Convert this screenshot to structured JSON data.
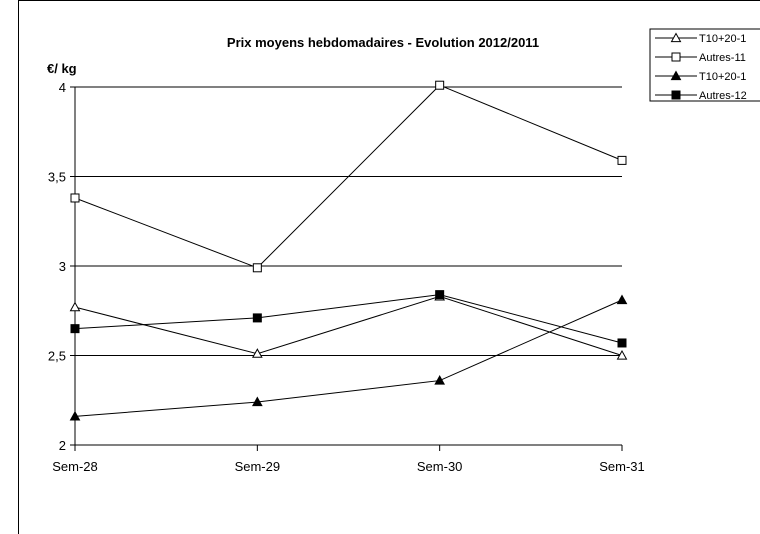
{
  "chart_data": {
    "type": "line",
    "title": "Prix moyens hebdomadaires - Evolution  2012/2011",
    "ylabel": "€/ kg",
    "xlabel": "",
    "categories": [
      "Sem-28",
      "Sem-29",
      "Sem-30",
      "Sem-31"
    ],
    "ylim": [
      2,
      4
    ],
    "yticks": [
      "2",
      "2,5",
      "3",
      "3,5",
      "4"
    ],
    "grid": true,
    "legend_position": "top-right",
    "series": [
      {
        "name": "T10+20-1",
        "marker": "open-triangle",
        "values": [
          2.77,
          2.51,
          2.83,
          2.5
        ]
      },
      {
        "name": "Autres-11",
        "marker": "open-square",
        "values": [
          3.38,
          2.99,
          4.01,
          3.59
        ]
      },
      {
        "name": "T10+20-1",
        "marker": "filled-triangle",
        "values": [
          2.16,
          2.24,
          2.36,
          2.81
        ]
      },
      {
        "name": "Autres-12",
        "marker": "filled-square",
        "values": [
          2.65,
          2.71,
          2.84,
          2.57
        ]
      }
    ],
    "colors": {
      "line": "#000000",
      "grid": "#000000",
      "background": "#ffffff"
    }
  }
}
